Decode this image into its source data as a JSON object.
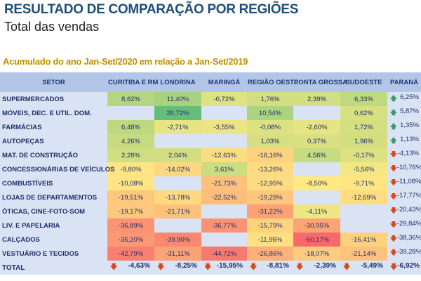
{
  "title": "RESULTADO DE COMPARAÇÃO POR REGIÕES",
  "subtitle": "Total das vendas",
  "period": "Acumulado do ano Jan-Set/2020 em relação a Jan-Set/2019",
  "colors": {
    "green": "#63be7b",
    "yellow": "#ffeb84",
    "red": "#f8696b",
    "up": "#3a9a6a",
    "down": "#d9481c"
  },
  "headers": [
    "SETOR",
    "CURITIBA E RM",
    "LONDRINA",
    "MARINGÁ",
    "REGIÃO OESTE",
    "PONTA GROSSA",
    "SUDOESTE",
    "PARANÁ"
  ],
  "rows": [
    {
      "setor": "SUPERMERCADOS",
      "values": [
        "8,62%",
        "11,40%",
        "-0,72%",
        "1,76%",
        "2,39%",
        "6,33%"
      ],
      "parana": "6,25%",
      "trend": "up"
    },
    {
      "setor": "MÓVEIS, DEC. E UTIL. DOM.",
      "values": [
        null,
        "26,72%",
        null,
        "10,54%",
        null,
        "0,62%"
      ],
      "parana": "5,87%",
      "trend": "up"
    },
    {
      "setor": "FARMÁCIAS",
      "values": [
        "6,48%",
        "-2,71%",
        "-3,55%",
        "-0,08%",
        "-2,60%",
        "1,72%"
      ],
      "parana": "1,35%",
      "trend": "up"
    },
    {
      "setor": "AUTOPEÇAS",
      "values": [
        "4,26%",
        null,
        null,
        "1,03%",
        "0,37%",
        "1,96%"
      ],
      "parana": "1,13%",
      "trend": "up"
    },
    {
      "setor": "MAT. DE CONSTRUÇÃO",
      "values": [
        "2,28%",
        "2,04%",
        "-12,63%",
        "-16,16%",
        "4,56%",
        "-0,17%"
      ],
      "parana": "-4,13%",
      "trend": "down"
    },
    {
      "setor": "CONCESSIONÁRIAS DE VEÍCULOS",
      "values": [
        "-9,80%",
        "-14,02%",
        "3,61%",
        "-13,26%",
        null,
        "-5,56%"
      ],
      "parana": "-10,76%",
      "trend": "down"
    },
    {
      "setor": "COMBUSTÍVEIS",
      "values": [
        "-10,08%",
        null,
        "-21,73%",
        "-12,95%",
        "-8,50%",
        "-9,71%"
      ],
      "parana": "-11,08%",
      "trend": "down"
    },
    {
      "setor": "LOJAS DE DEPARTAMENTOS",
      "values": [
        "-19,51%",
        "-13,78%",
        "-22,52%",
        "-19,29%",
        null,
        "-12,69%"
      ],
      "parana": "-17,77%",
      "trend": "down"
    },
    {
      "setor": "ÓTICAS, CINE-FOTO-SOM",
      "values": [
        "-19,17%",
        "-21,71%",
        null,
        "-31,22%",
        "-4,11%",
        null
      ],
      "parana": "-20,43%",
      "trend": "down"
    },
    {
      "setor": "LIV. E PAPELARIA",
      "values": [
        "-36,89%",
        null,
        "-36,77%",
        "-15,79%",
        "-30,95%",
        null
      ],
      "parana": "-29,84%",
      "trend": "down"
    },
    {
      "setor": "CALÇADOS",
      "values": [
        "-35,20%",
        "-39,90%",
        null,
        "-11,95%",
        "-50,17%",
        "-16,41%"
      ],
      "parana": "-38,36%",
      "trend": "down"
    },
    {
      "setor": "VESTUÁRIO E TECIDOS",
      "values": [
        "-42,79%",
        "-31,11%",
        "-44,72%",
        "-26,86%",
        "-18,07%",
        "-21,14%"
      ],
      "parana": "-39,28%",
      "trend": "down"
    }
  ],
  "total": {
    "label": "TOTAL",
    "values": [
      "-4,63%",
      "-8,25%",
      "-15,95%",
      "-8,81%",
      "-2,39%",
      "-5,49%"
    ],
    "parana": "-6,92%",
    "trend": "down"
  }
}
